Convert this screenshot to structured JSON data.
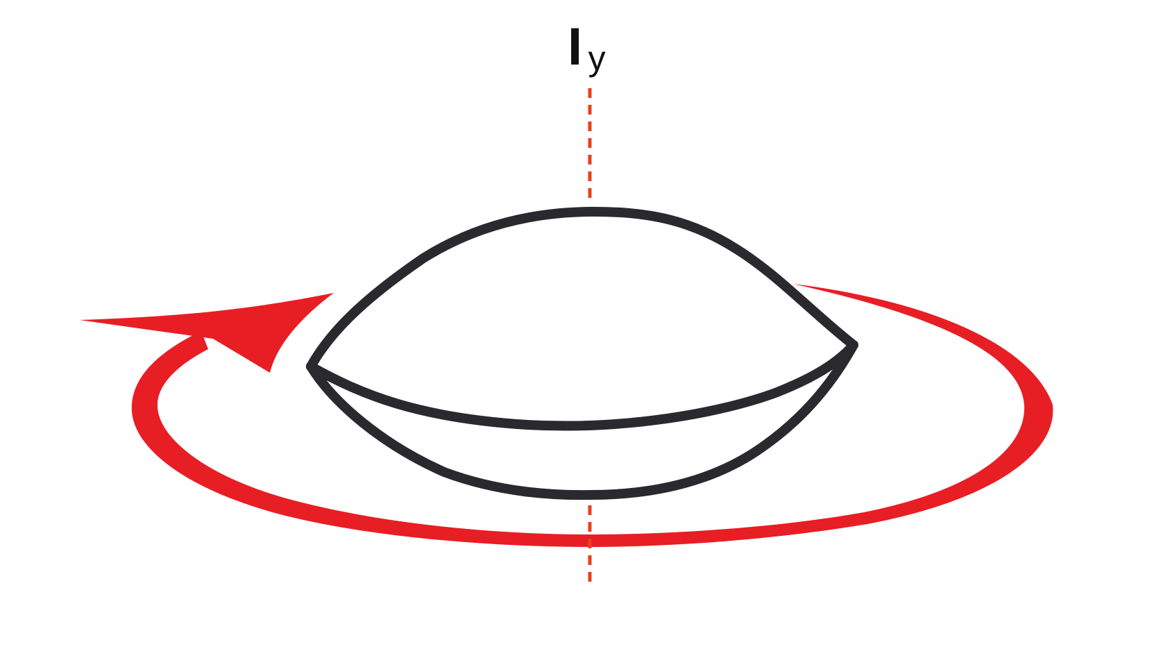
{
  "axis_label": {
    "symbol": "I",
    "subscript": "y"
  },
  "colors": {
    "axis": "#e8401c",
    "rotation_arrow": "#e81e25",
    "shape_outline": "#2a2a2e",
    "text": "#111111"
  }
}
